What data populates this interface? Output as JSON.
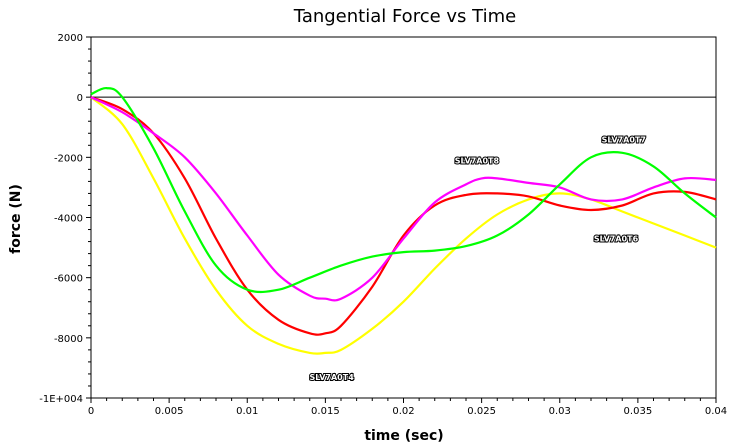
{
  "chart_data": {
    "type": "line",
    "title": "Tangential Force vs Time",
    "xlabel": "time (sec)",
    "ylabel": "force (N)",
    "xlim": [
      0,
      0.04
    ],
    "ylim": [
      -10000,
      2000
    ],
    "x_ticks": [
      0,
      0.005,
      0.01,
      0.015,
      0.02,
      0.025,
      0.03,
      0.035,
      0.04
    ],
    "x_tick_labels": [
      "0",
      "0.005",
      "0.01",
      "0.015",
      "0.02",
      "0.025",
      "0.03",
      "0.035",
      "0.04"
    ],
    "y_ticks": [
      2000,
      0,
      -2000,
      -4000,
      -6000,
      -8000,
      -10000
    ],
    "y_tick_labels": [
      "2000",
      "0",
      "-2000",
      "-4000",
      "-6000",
      "-8000",
      "-1E+004"
    ],
    "zero_line": true,
    "grid": false,
    "series": [
      {
        "name": "SLV7A0T4",
        "color": "#ffff00",
        "x": [
          0,
          0.002,
          0.004,
          0.006,
          0.008,
          0.01,
          0.012,
          0.014,
          0.015,
          0.016,
          0.018,
          0.02,
          0.022,
          0.024,
          0.026,
          0.028,
          0.03,
          0.032,
          0.034,
          0.036,
          0.038,
          0.04
        ],
        "y": [
          0,
          -900,
          -2700,
          -4700,
          -6400,
          -7600,
          -8200,
          -8500,
          -8500,
          -8400,
          -7700,
          -6800,
          -5700,
          -4700,
          -3900,
          -3400,
          -3200,
          -3400,
          -3800,
          -4200,
          -4600,
          -5000
        ]
      },
      {
        "name": "SLV7A0T6",
        "color": "#ff0000",
        "x": [
          0,
          0.002,
          0.004,
          0.006,
          0.008,
          0.01,
          0.012,
          0.014,
          0.015,
          0.016,
          0.018,
          0.02,
          0.022,
          0.024,
          0.026,
          0.028,
          0.03,
          0.032,
          0.034,
          0.036,
          0.038,
          0.04
        ],
        "y": [
          0,
          -400,
          -1200,
          -2700,
          -4700,
          -6400,
          -7400,
          -7850,
          -7850,
          -7600,
          -6300,
          -4600,
          -3600,
          -3250,
          -3200,
          -3300,
          -3600,
          -3750,
          -3600,
          -3200,
          -3150,
          -3400
        ]
      },
      {
        "name": "SLV7A0T8",
        "color": "#ff00ff",
        "x": [
          0,
          0.002,
          0.004,
          0.006,
          0.008,
          0.01,
          0.012,
          0.014,
          0.015,
          0.016,
          0.018,
          0.02,
          0.022,
          0.024,
          0.025,
          0.026,
          0.028,
          0.03,
          0.032,
          0.034,
          0.036,
          0.038,
          0.04
        ],
        "y": [
          0,
          -500,
          -1200,
          -2000,
          -3200,
          -4600,
          -5900,
          -6600,
          -6700,
          -6700,
          -6000,
          -4700,
          -3500,
          -2900,
          -2700,
          -2700,
          -2850,
          -3000,
          -3400,
          -3400,
          -3000,
          -2700,
          -2750
        ]
      },
      {
        "name": "SLV7A0T7",
        "color": "#00ff00",
        "x": [
          0,
          0.001,
          0.002,
          0.004,
          0.006,
          0.008,
          0.01,
          0.012,
          0.014,
          0.016,
          0.018,
          0.02,
          0.022,
          0.024,
          0.026,
          0.028,
          0.03,
          0.032,
          0.034,
          0.036,
          0.038,
          0.04
        ],
        "y": [
          100,
          300,
          0,
          -1700,
          -3800,
          -5600,
          -6400,
          -6400,
          -6000,
          -5600,
          -5300,
          -5150,
          -5100,
          -4950,
          -4600,
          -3900,
          -2900,
          -2000,
          -1850,
          -2300,
          -3200,
          -4000
        ]
      }
    ],
    "annotations": [
      {
        "text": "SLV7A0T4",
        "x": 0.0154,
        "y": -9400
      },
      {
        "text": "SLV7A0T6",
        "x": 0.0336,
        "y": -4800
      },
      {
        "text": "SLV7A0T8",
        "x": 0.0247,
        "y": -2200
      },
      {
        "text": "SLV7A0T7",
        "x": 0.0341,
        "y": -1500
      }
    ]
  }
}
